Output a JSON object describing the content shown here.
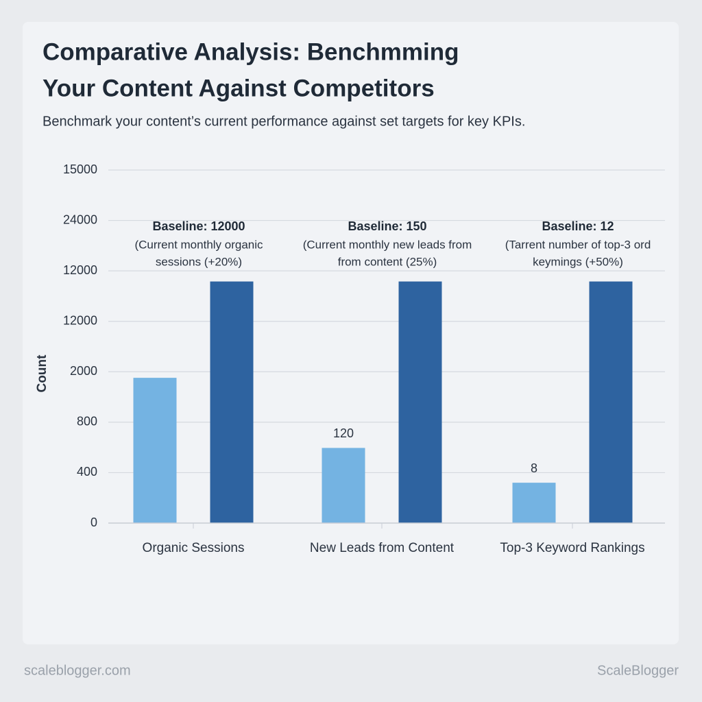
{
  "chart_data": {
    "type": "bar",
    "title": [
      "Comparative Analysis: Benchmming",
      "Your Content Against Competitors"
    ],
    "subtitle": "Benchmark your content’s current performance against set targets for key KPIs.",
    "y_label": "Count",
    "categories": [
      "Organic Sessions",
      "New Leads from Content",
      "Top-3 Keyword Rankings"
    ],
    "series": [
      {
        "color": "#74b3e2",
        "values": [
          2.88,
          1.49,
          0.8
        ]
      },
      {
        "color": "#2e63a0",
        "values": [
          4.79,
          4.79,
          4.79
        ]
      }
    ],
    "bar_labels": [
      null,
      "120",
      "8"
    ],
    "annotations": [
      {
        "title": "Baseline: 12000",
        "lines": [
          "(Current monthly organic",
          "sessions (+20%)"
        ]
      },
      {
        "title": "Baseline: 150",
        "lines": [
          "(Current monthly new leads from",
          "from content (25%)"
        ]
      },
      {
        "title": "Baseline: 12",
        "lines": [
          "(Tarrent number of top-3    ord",
          "keymings (+50%)"
        ]
      }
    ],
    "ylim": [
      0,
      7
    ],
    "yticks": [
      {
        "value": 0,
        "label": "0"
      },
      {
        "value": 1,
        "label": "400"
      },
      {
        "value": 2,
        "label": "800"
      },
      {
        "value": 3,
        "label": "2000"
      },
      {
        "value": 4,
        "label": "12000"
      },
      {
        "value": 5,
        "label": "12000"
      },
      {
        "value": 6,
        "label": "24000"
      },
      {
        "value": 7,
        "label": "15000"
      }
    ],
    "grid": true
  },
  "footer": {
    "left": "scaleblogger.com",
    "right": "ScaleBlogger"
  }
}
